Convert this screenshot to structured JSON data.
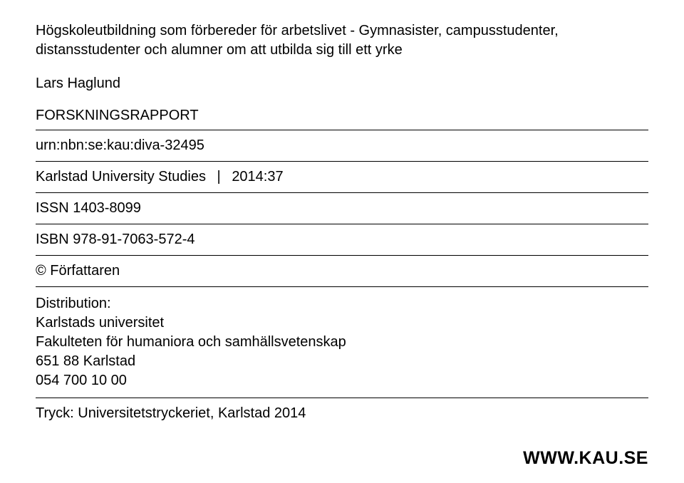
{
  "title": "Högskoleutbildning som förbereder för arbetslivet - Gymnasister, campusstudenter, distansstudenter och alumner om att utbilda sig till ett yrke",
  "author": "Lars Haglund",
  "report_type": "FORSKNINGSRAPPORT",
  "urn": "urn:nbn:se:kau:diva-32495",
  "studies_label": "Karlstad University Studies",
  "studies_separator": "|",
  "studies_number": "2014:37",
  "issn": "ISSN 1403-8099",
  "isbn": "ISBN 978-91-7063-572-4",
  "copyright": "© Författaren",
  "distribution": {
    "label": "Distribution:",
    "line1": "Karlstads universitet",
    "line2": "Fakulteten för humaniora och samhällsvetenskap",
    "line3": "651 88 Karlstad",
    "line4": "054 700 10 00"
  },
  "print": "Tryck: Universitetstryckeriet, Karlstad 2014",
  "footer_url": "WWW.KAU.SE",
  "colors": {
    "background": "#ffffff",
    "text": "#000000",
    "divider": "#000000"
  },
  "typography": {
    "body_fontsize": 20,
    "footer_fontsize": 25,
    "font_family": "Arial, Helvetica, sans-serif"
  }
}
